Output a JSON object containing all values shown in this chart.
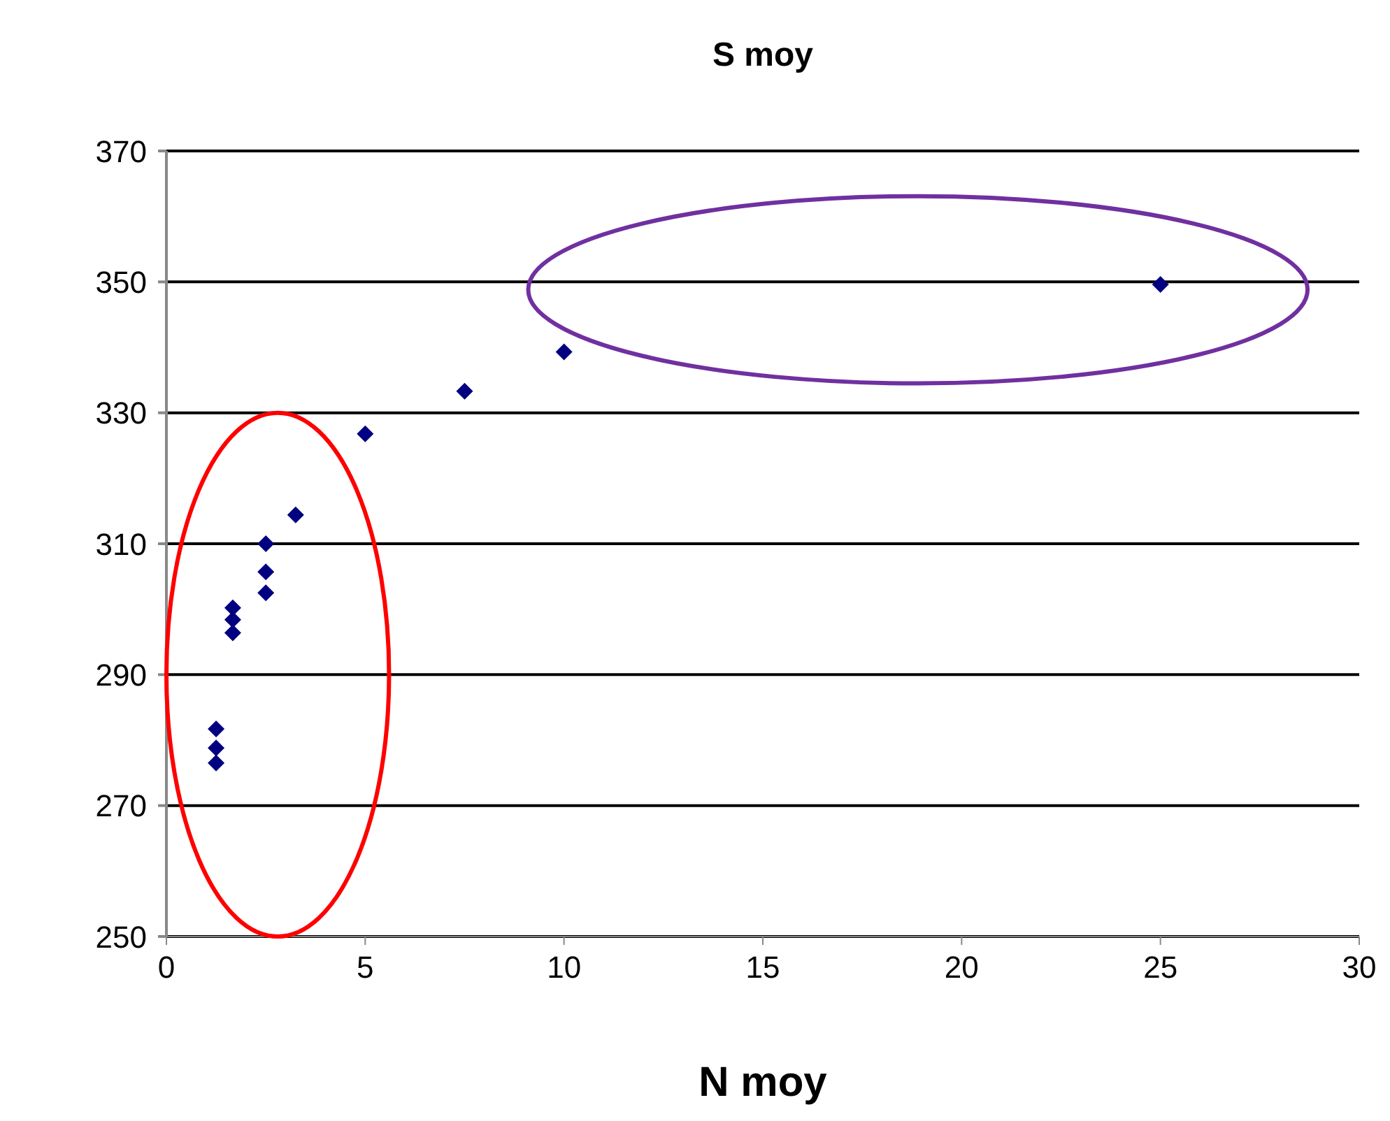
{
  "chart_data": {
    "type": "scatter",
    "title": "S moy",
    "xlabel": "N moy",
    "x": [
      1.25,
      1.25,
      1.25,
      1.67,
      1.67,
      1.67,
      2.5,
      2.5,
      2.5,
      3.25,
      5,
      7.5,
      10,
      25
    ],
    "series": [
      {
        "color": "#000080",
        "values": [
          281.7,
          278.8,
          276.5,
          300.2,
          298.4,
          296.4,
          310,
          305.7,
          302.5,
          314.4,
          326.8,
          333.3,
          339.3,
          349.6
        ]
      }
    ],
    "xlim": [
      0,
      30
    ],
    "xticks": [
      0,
      5,
      10,
      15,
      20,
      25,
      30
    ],
    "ylim": [
      250,
      370
    ],
    "yticks": [
      250,
      270,
      290,
      310,
      330,
      350,
      370
    ],
    "grid": "y",
    "marker": "diamond"
  }
}
